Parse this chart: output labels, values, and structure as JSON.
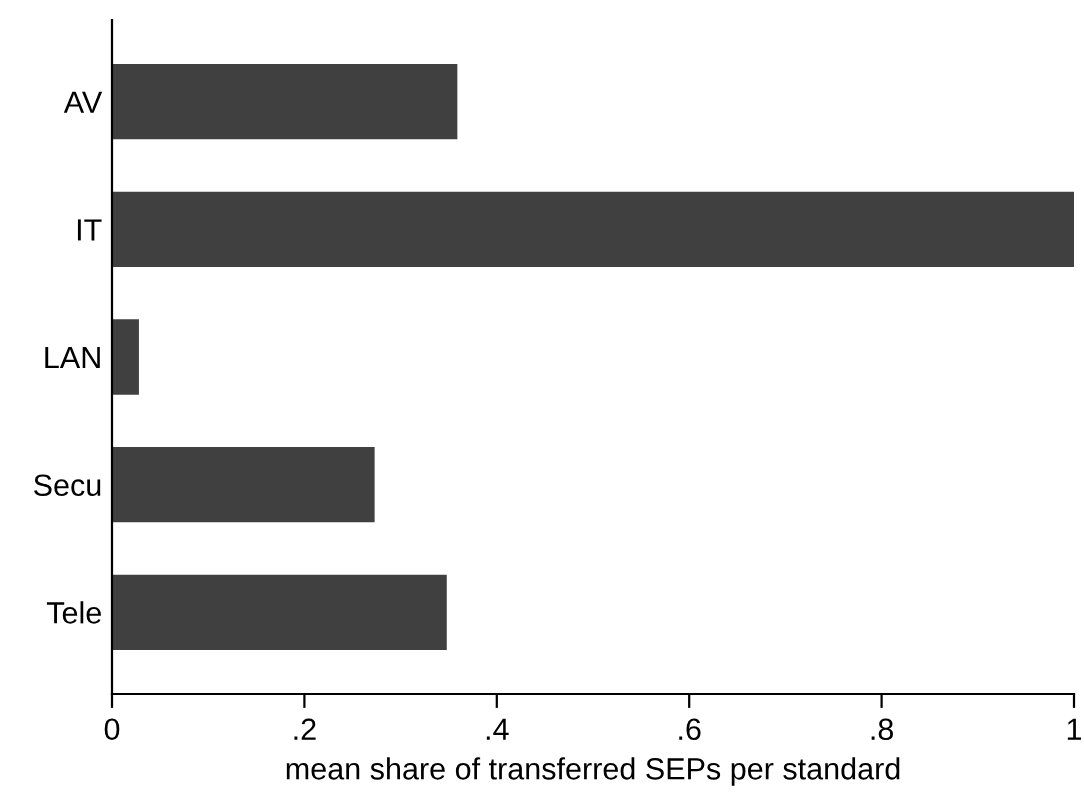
{
  "chart_data": {
    "type": "bar",
    "orientation": "horizontal",
    "xlabel": "mean share of transferred SEPs per standard",
    "categories": [
      "AV",
      "IT",
      "LAN",
      "Secu",
      "Tele"
    ],
    "values": [
      0.359,
      1.0,
      0.028,
      0.273,
      0.348
    ],
    "color": "#404040",
    "xlim": [
      0,
      1
    ],
    "xticks": [
      0,
      {
        "value": 0.2,
        "label": ".2"
      },
      {
        "value": 0.4,
        "label": ".4"
      },
      {
        "value": 0.6,
        "label": ".6"
      },
      {
        "value": 0.8,
        "label": ".8"
      },
      1
    ],
    "grid": false,
    "legend": false
  }
}
